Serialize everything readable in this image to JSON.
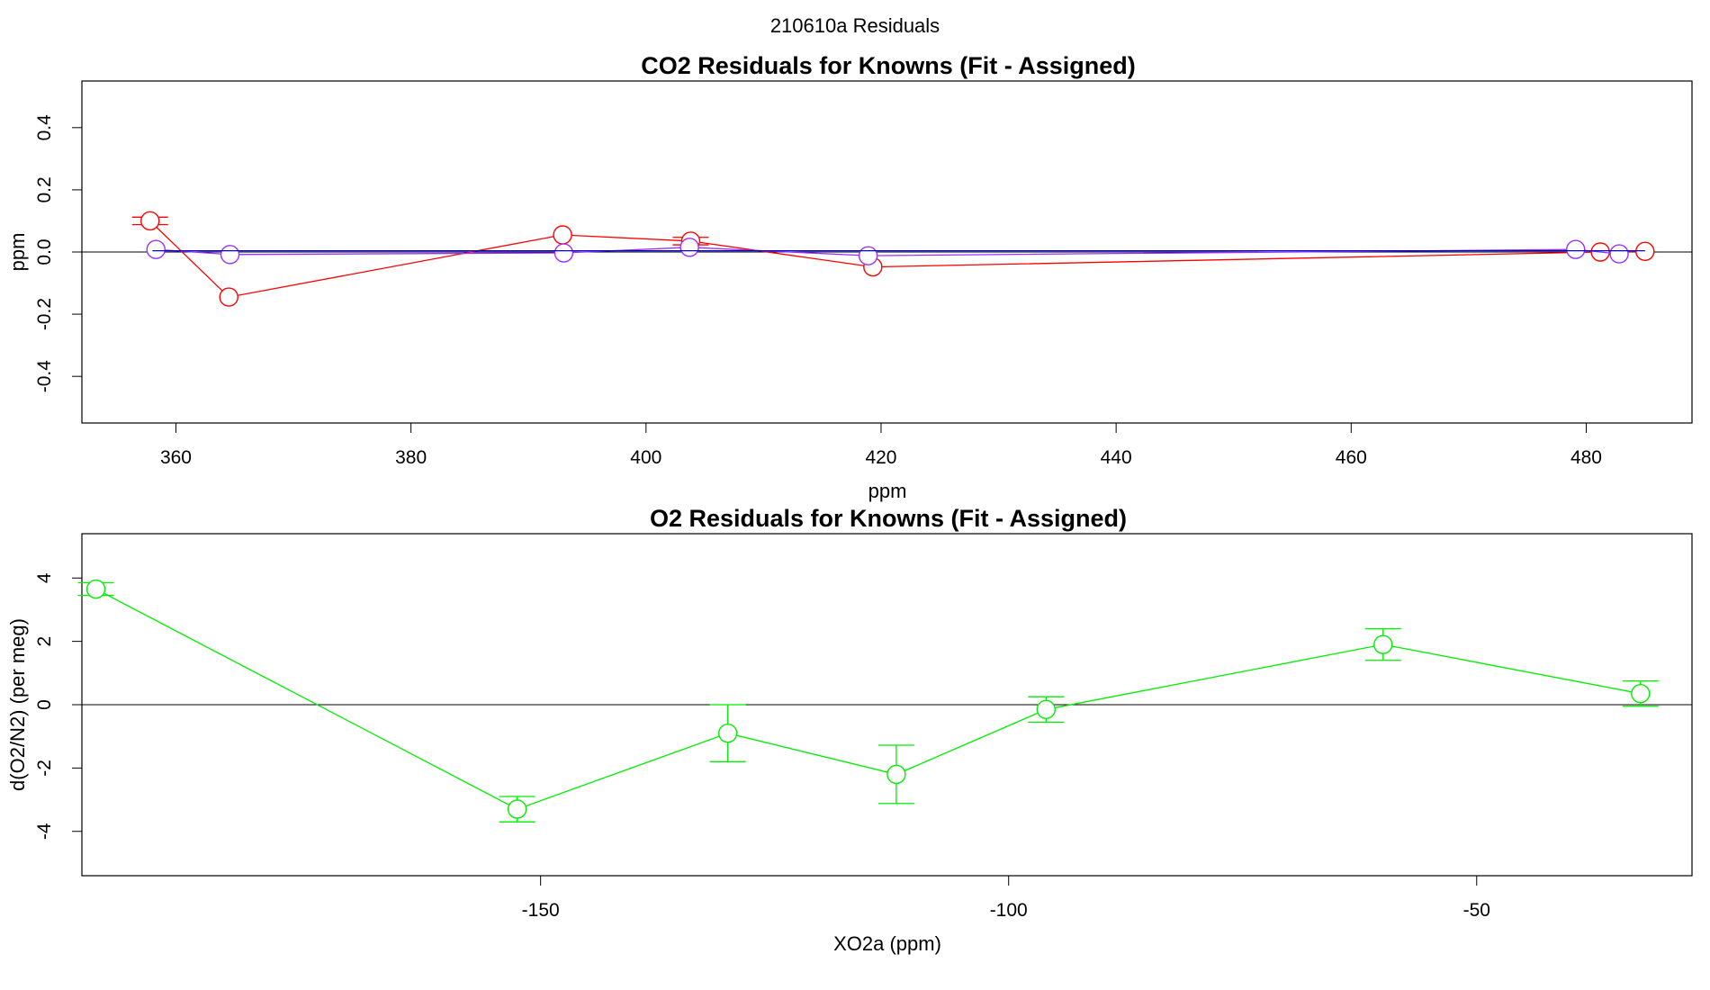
{
  "figure": {
    "title": "210610a  Residuals"
  },
  "chart_data": [
    {
      "type": "line",
      "title": "CO2 Residuals for Knowns (Fit - Assigned)",
      "xlabel": "ppm",
      "ylabel": "ppm",
      "xlim": [
        352,
        489
      ],
      "ylim": [
        -0.55,
        0.55
      ],
      "xticks": [
        360,
        380,
        400,
        420,
        440,
        460,
        480
      ],
      "xtick_labels": [
        "360",
        "380",
        "400",
        "420",
        "440",
        "460",
        "480"
      ],
      "yticks": [
        -0.4,
        -0.2,
        0.0,
        0.2,
        0.4
      ],
      "ytick_labels": [
        "-0.4",
        "-0.2",
        "0.0",
        "0.2",
        "0.4"
      ],
      "zero_line": true,
      "grid": false,
      "series": [
        {
          "color": "#ff0000",
          "x": [
            357.8,
            364.5,
            392.9,
            403.8,
            419.3,
            481.2,
            485.0
          ],
          "y": [
            0.1,
            -0.145,
            0.055,
            0.035,
            -0.048,
            0.0,
            0.002
          ],
          "err": [
            0.012,
            0.0,
            0.0,
            0.012,
            0.0,
            0.0,
            0.0
          ]
        },
        {
          "color": "#9a30ff",
          "x": [
            358.3,
            364.6,
            393.0,
            403.7,
            418.9,
            479.1,
            482.8
          ],
          "y": [
            0.008,
            -0.008,
            -0.003,
            0.015,
            -0.012,
            0.008,
            -0.006
          ],
          "err": [
            0.0,
            0.0,
            0.0,
            0.0,
            0.0,
            0.0,
            0.0
          ]
        },
        {
          "color": "#0000cc",
          "x": [
            358.0,
            485.0
          ],
          "y": [
            0.004,
            0.004
          ],
          "err": [
            0.0,
            0.0
          ],
          "markers": false
        }
      ]
    },
    {
      "type": "line",
      "title": "O2 Residuals for Knowns (Fit - Assigned)",
      "xlabel": "XO2a (ppm)",
      "ylabel": "d(O2/N2) (per meg)",
      "xlim": [
        -199,
        -27
      ],
      "ylim": [
        -5.4,
        5.4
      ],
      "xticks": [
        -150,
        -100,
        -50
      ],
      "xtick_labels": [
        "-150",
        "-100",
        "-50"
      ],
      "yticks": [
        -4,
        -2,
        0,
        2,
        4
      ],
      "ytick_labels": [
        "-4",
        "-2",
        "0",
        "2",
        "4"
      ],
      "zero_line": true,
      "grid": false,
      "series": [
        {
          "color": "#00ee00",
          "x": [
            -197.5,
            -152.5,
            -130.0,
            -112.0,
            -96.0,
            -60.0,
            -32.5
          ],
          "y": [
            3.65,
            -3.3,
            -0.9,
            -2.2,
            -0.15,
            1.9,
            0.35
          ],
          "err": [
            0.2,
            0.4,
            0.9,
            0.92,
            0.4,
            0.5,
            0.4
          ]
        }
      ]
    }
  ]
}
